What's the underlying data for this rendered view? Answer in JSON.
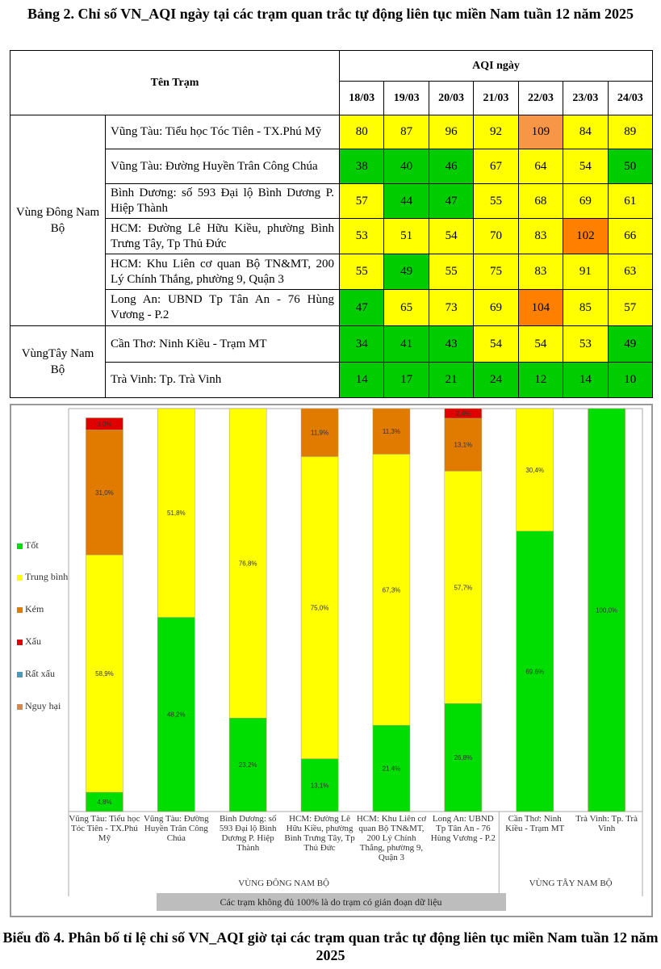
{
  "table_title": "Bảng 2. Chỉ số VN_AQI ngày tại các trạm quan trắc tự động liên tục miền Nam tuần 12 năm 2025",
  "table": {
    "header_station": "Tên Trạm",
    "header_aqi": "AQI ngày",
    "dates": [
      "18/03",
      "19/03",
      "20/03",
      "21/03",
      "22/03",
      "23/03",
      "24/03"
    ],
    "regions": [
      {
        "name": "Vùng Đông Nam Bộ",
        "rows": [
          {
            "station": "Vũng Tàu: Tiểu học Tóc Tiên - TX.Phú Mỹ",
            "values": [
              80,
              87,
              96,
              92,
              109,
              84,
              89
            ],
            "colors": [
              "#ffff00",
              "#ffff00",
              "#ffff00",
              "#ffff00",
              "#f79646",
              "#ffff00",
              "#ffff00"
            ]
          },
          {
            "station": "Vũng Tàu: Đường Huyền Trân Công Chúa",
            "values": [
              38,
              40,
              46,
              67,
              64,
              54,
              50
            ],
            "colors": [
              "#00cc00",
              "#00cc00",
              "#00cc00",
              "#ffff00",
              "#ffff00",
              "#ffff00",
              "#00cc00"
            ]
          },
          {
            "station": "Bình Dương: số 593 Đại lộ Bình Dương P. Hiệp Thành",
            "values": [
              57,
              44,
              47,
              55,
              68,
              69,
              61
            ],
            "colors": [
              "#ffff00",
              "#00cc00",
              "#00cc00",
              "#ffff00",
              "#ffff00",
              "#ffff00",
              "#ffff00"
            ]
          },
          {
            "station": "HCM: Đường Lê Hữu Kiều, phường Bình Trưng Tây, Tp Thủ Đức",
            "values": [
              53,
              51,
              54,
              70,
              83,
              102,
              66
            ],
            "colors": [
              "#ffff00",
              "#ffff00",
              "#ffff00",
              "#ffff00",
              "#ffff00",
              "#ff8000",
              "#ffff00"
            ]
          },
          {
            "station": "HCM: Khu Liên cơ quan Bộ TN&MT, 200 Lý Chính Thắng, phường 9, Quận 3",
            "values": [
              55,
              49,
              55,
              75,
              83,
              91,
              63
            ],
            "colors": [
              "#ffff00",
              "#00cc00",
              "#ffff00",
              "#ffff00",
              "#ffff00",
              "#ffff00",
              "#ffff00"
            ]
          },
          {
            "station": "Long An: UBND Tp Tân An - 76 Hùng Vương - P.2",
            "values": [
              47,
              65,
              73,
              69,
              104,
              85,
              57
            ],
            "colors": [
              "#00cc00",
              "#ffff00",
              "#ffff00",
              "#ffff00",
              "#ff8000",
              "#ffff00",
              "#ffff00"
            ]
          }
        ]
      },
      {
        "name": "VùngTây Nam Bộ",
        "rows": [
          {
            "station": "Cần Thơ: Ninh Kiều - Trạm MT",
            "values": [
              34,
              41,
              43,
              54,
              54,
              53,
              49
            ],
            "colors": [
              "#00cc00",
              "#00cc00",
              "#00cc00",
              "#ffff00",
              "#ffff00",
              "#ffff00",
              "#00cc00"
            ]
          },
          {
            "station": "Trà Vinh: Tp. Trà Vinh",
            "values": [
              14,
              17,
              21,
              24,
              12,
              14,
              10
            ],
            "colors": [
              "#00cc00",
              "#00cc00",
              "#00cc00",
              "#00cc00",
              "#00cc00",
              "#00cc00",
              "#00cc00"
            ]
          }
        ]
      }
    ]
  },
  "chart_data": {
    "type": "bar",
    "stacked": true,
    "title": "Biểu đồ 4. Phân bố tỉ lệ chỉ số VN_AQI giờ tại các trạm quan trắc tự động liên tục miền Nam tuần 12 năm 2025",
    "categories": [
      "Vũng Tàu: Tiểu học Tóc Tiên - TX.Phú Mỹ",
      "Vũng Tàu: Đường Huyền Trân Công Chúa",
      "Bình Dương: số 593 Đại lộ Bình Dương P. Hiệp Thành",
      "HCM: Đường Lê Hữu Kiều, phường Bình Trưng Tây, Tp Thủ Đức",
      "HCM: Khu Liên cơ quan Bộ TN&MT, 200 Lý Chính Thắng, phường 9, Quận 3",
      "Long An: UBND Tp Tân An - 76 Hùng Vương - P.2",
      "Cần Thơ: Ninh Kiều - Trạm MT",
      "Trà Vinh: Tp. Trà Vinh"
    ],
    "groups": [
      {
        "label": "VÙNG ĐÔNG NAM BỘ",
        "count": 6
      },
      {
        "label": "VÙNG TÂY NAM BỘ",
        "count": 2
      }
    ],
    "series": [
      {
        "name": "Tốt",
        "color": "#00dd00",
        "values": [
          4.8,
          48.2,
          23.2,
          13.1,
          21.4,
          26.8,
          69.6,
          100.0
        ]
      },
      {
        "name": "Trung bình",
        "color": "#ffff00",
        "values": [
          58.9,
          51.8,
          76.8,
          75.0,
          67.3,
          57.7,
          30.4,
          0
        ]
      },
      {
        "name": "Kém",
        "color": "#e07b00",
        "values": [
          31.0,
          0,
          0,
          11.9,
          11.3,
          13.1,
          0,
          0
        ]
      },
      {
        "name": "Xấu",
        "color": "#e00000",
        "values": [
          3.0,
          0,
          0,
          0,
          0,
          2.4,
          0,
          0
        ]
      },
      {
        "name": "Rất xấu",
        "color": "#4a9bb5",
        "values": [
          0,
          0,
          0,
          0,
          0,
          0,
          0,
          0
        ]
      },
      {
        "name": "Nguy hại",
        "color": "#d9864a",
        "values": [
          0,
          0,
          0,
          0,
          0,
          0,
          0,
          0
        ]
      }
    ],
    "ylim": [
      0,
      100
    ],
    "legend": "left",
    "note": "Các trạm không đủ 100% là do trạm có gián đoạn dữ liệu"
  }
}
